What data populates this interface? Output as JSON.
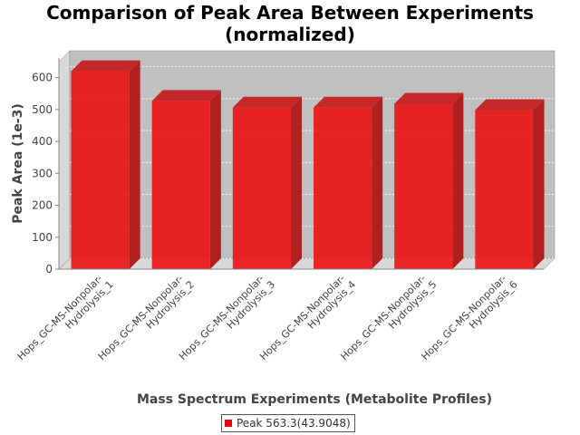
{
  "chart_data": {
    "type": "bar",
    "title": [
      "Comparison of Peak Area Between Experiments",
      "(normalized)"
    ],
    "xlabel": "Mass Spectrum Experiments (Metabolite Profiles)",
    "ylabel": "Peak Area (1e-3)",
    "ylim": [
      0,
      650
    ],
    "yticks": [
      0,
      100,
      200,
      300,
      400,
      500,
      600
    ],
    "categories": [
      [
        "Hops_GC-MS-Nonpolar-",
        "Hydrolysis_1"
      ],
      [
        "Hops_GC-MS-Nonpolar-",
        "Hydrolysis_2"
      ],
      [
        "Hops_GC-MS-Nonpolar-",
        "Hydrolysis_3"
      ],
      [
        "Hops_GC-MS-Nonpolar-",
        "Hydrolysis_4"
      ],
      [
        "Hops_GC-MS-Nonpolar-",
        "Hydrolysis_5"
      ],
      [
        "Hops_GC-MS-Nonpolar-",
        "Hydrolysis_6"
      ]
    ],
    "series": [
      {
        "name": "Peak 563.3(43.9048)",
        "color": "#ee0000",
        "values": [
          620,
          527,
          506,
          506,
          518,
          498
        ]
      }
    ],
    "grid": true,
    "legend_position": "bottom",
    "style": "3d"
  }
}
